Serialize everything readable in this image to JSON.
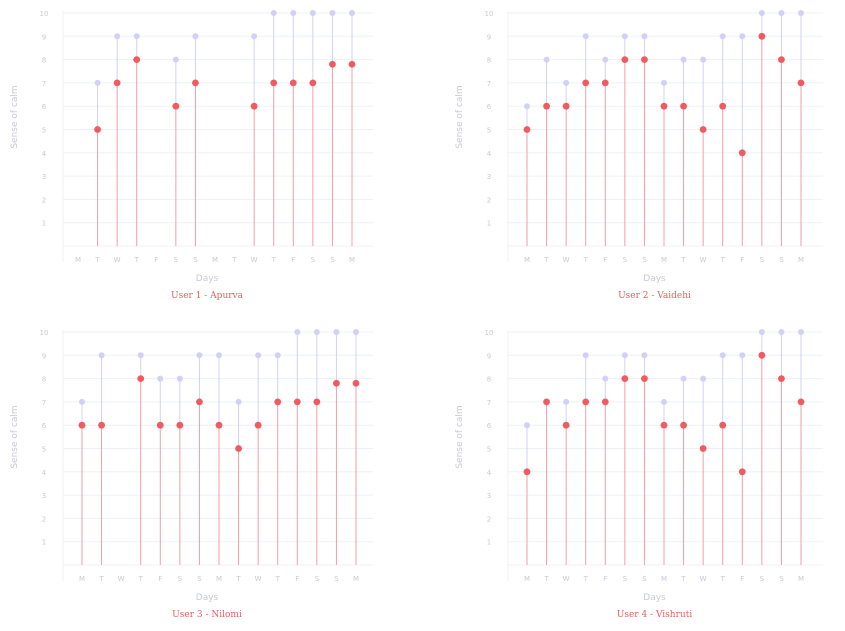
{
  "colors": {
    "stem_low": "#f0a0a8",
    "stem_high": "#cfd2f4",
    "dot_low": "#f25a62",
    "dot_high": "#cfd1f7",
    "grid": "#eef0f6",
    "axis_text": "#c7c9d6",
    "title": "#e8605f"
  },
  "chart_data": [
    {
      "type": "lollipop",
      "title": "User 1 - Apurva",
      "xlabel": "Days",
      "ylabel": "Sense of calm",
      "ylim": [
        0,
        10
      ],
      "yticks": [
        "1",
        "2",
        "3",
        "4",
        "5",
        "6",
        "7",
        "8",
        "9",
        "10"
      ],
      "days": [
        "M",
        "T",
        "W",
        "T",
        "F",
        "S",
        "S",
        "M",
        "T",
        "W",
        "T",
        "F",
        "S",
        "S",
        "M"
      ],
      "series": [
        {
          "values": [
            null,
            7,
            9,
            9,
            null,
            8,
            9,
            null,
            null,
            9,
            10,
            10,
            10,
            10,
            10
          ]
        },
        {
          "values": [
            null,
            5,
            7,
            8,
            null,
            6,
            7,
            null,
            null,
            6,
            7,
            7,
            7,
            7.8,
            7.8
          ]
        }
      ]
    },
    {
      "type": "lollipop",
      "title": "User 2 - Vaidehi",
      "xlabel": "Days",
      "ylabel": "Sense of calm",
      "ylim": [
        0,
        10
      ],
      "yticks": [
        "1",
        "2",
        "3",
        "4",
        "5",
        "6",
        "7",
        "8",
        "9",
        "10"
      ],
      "days": [
        "M",
        "T",
        "W",
        "T",
        "F",
        "S",
        "S",
        "M",
        "T",
        "W",
        "T",
        "F",
        "S",
        "S",
        "M"
      ],
      "series": [
        {
          "values": [
            6,
            8,
            7,
            9,
            8,
            9,
            9,
            7,
            8,
            8,
            9,
            9,
            10,
            10,
            10
          ]
        },
        {
          "values": [
            5,
            6,
            6,
            7,
            7,
            8,
            8,
            6,
            6,
            5,
            6,
            4,
            9,
            8,
            7
          ]
        }
      ]
    },
    {
      "type": "lollipop",
      "title": "User 3 - Nilomi",
      "xlabel": "Days",
      "ylabel": "Sense of calm",
      "ylim": [
        0,
        10
      ],
      "yticks": [
        "1",
        "2",
        "3",
        "4",
        "5",
        "6",
        "7",
        "8",
        "9",
        "10"
      ],
      "days": [
        "M",
        "T",
        "W",
        "T",
        "F",
        "S",
        "S",
        "M",
        "T",
        "W",
        "T",
        "F",
        "S",
        "S",
        "M"
      ],
      "series": [
        {
          "values": [
            7,
            9,
            null,
            9,
            8,
            8,
            9,
            9,
            7,
            9,
            9,
            10,
            10,
            10,
            10
          ]
        },
        {
          "values": [
            6,
            6,
            null,
            8,
            6,
            6,
            7,
            6,
            5,
            6,
            7,
            7,
            7,
            7.8,
            7.8
          ]
        }
      ]
    },
    {
      "type": "lollipop",
      "title": "User 4 - Vishruti",
      "xlabel": "Days",
      "ylabel": "Sense of calm",
      "ylim": [
        0,
        10
      ],
      "yticks": [
        "1",
        "2",
        "3",
        "4",
        "5",
        "6",
        "7",
        "8",
        "9",
        "10"
      ],
      "days": [
        "M",
        "T",
        "W",
        "T",
        "F",
        "S",
        "S",
        "M",
        "T",
        "W",
        "T",
        "F",
        "S",
        "S",
        "M"
      ],
      "series": [
        {
          "values": [
            6,
            7,
            7,
            9,
            8,
            9,
            9,
            7,
            8,
            8,
            9,
            9,
            10,
            10,
            10
          ]
        },
        {
          "values": [
            4,
            7,
            6,
            7,
            7,
            8,
            8,
            6,
            6,
            5,
            6,
            4,
            9,
            8,
            7
          ]
        }
      ]
    }
  ]
}
